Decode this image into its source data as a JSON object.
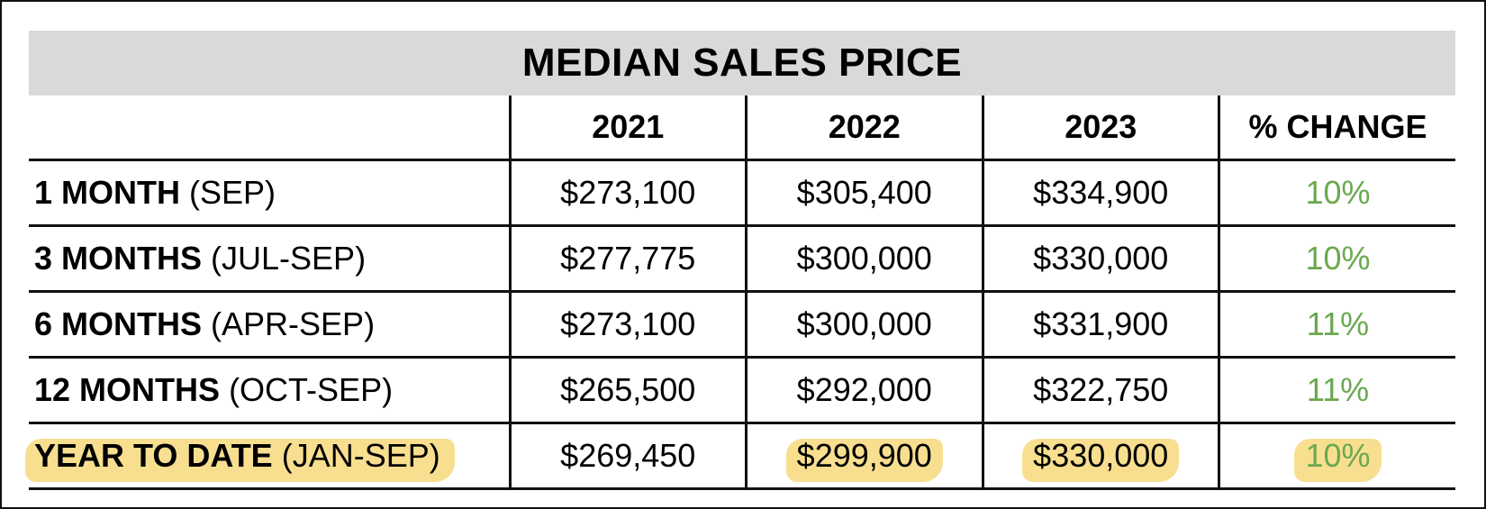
{
  "chart_data": {
    "type": "table",
    "title": "MEDIAN SALES PRICE",
    "columns": [
      "",
      "2021",
      "2022",
      "2023",
      "% CHANGE"
    ],
    "rows": [
      {
        "label_bold": "1 MONTH",
        "label_paren": "(SEP)",
        "y2021": "$273,100",
        "y2022": "$305,400",
        "y2023": "$334,900",
        "change": "10%"
      },
      {
        "label_bold": "3 MONTHS",
        "label_paren": "(JUL-SEP)",
        "y2021": "$277,775",
        "y2022": "$300,000",
        "y2023": "$330,000",
        "change": "10%"
      },
      {
        "label_bold": "6 MONTHS",
        "label_paren": "(APR-SEP)",
        "y2021": "$273,100",
        "y2022": "$300,000",
        "y2023": "$331,900",
        "change": "11%"
      },
      {
        "label_bold": "12 MONTHS",
        "label_paren": "(OCT-SEP)",
        "y2021": "$265,500",
        "y2022": "$292,000",
        "y2023": "$322,750",
        "change": "11%"
      },
      {
        "label_bold": "YEAR TO DATE",
        "label_paren": "(JAN-SEP)",
        "y2021": "$269,450",
        "y2022": "$299,900",
        "y2023": "$330,000",
        "change": "10%"
      }
    ],
    "highlighted_row": "YEAR TO DATE",
    "colors": {
      "title_background": "#d9d9d9",
      "change_text": "#6aa84f",
      "highlight": "#f7dc84"
    }
  }
}
